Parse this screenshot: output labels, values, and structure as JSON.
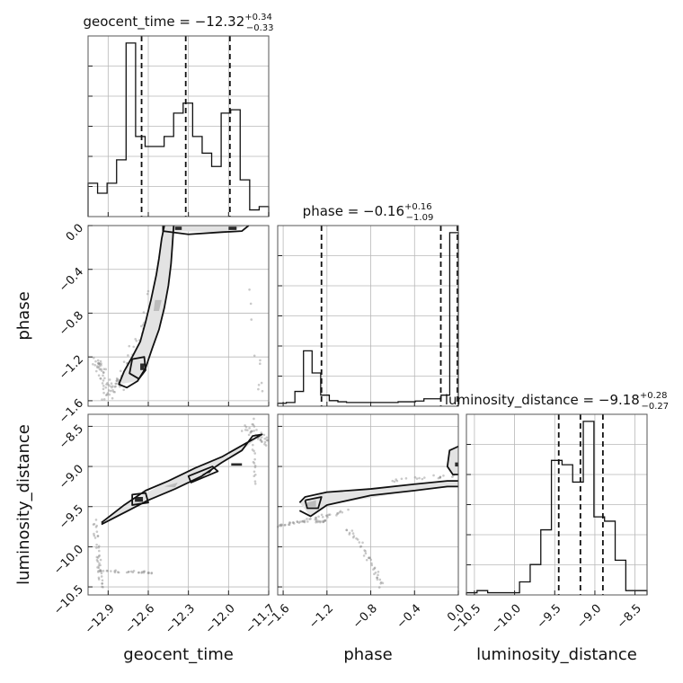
{
  "chart_data": {
    "type": "corner",
    "parameters": [
      {
        "name": "geocent_time",
        "xlabel": "geocent_time",
        "title": {
          "prefix": "geocent_time = ",
          "value": "−12.32",
          "plus": "+0.34",
          "minus": "−0.33"
        },
        "range": [
          -13.05,
          -11.7
        ],
        "ticks": [
          -12.9,
          -12.6,
          -12.3,
          -12.0,
          -11.7
        ],
        "tick_labels": [
          "−12.9",
          "−12.6",
          "−12.3",
          "−12.0",
          "−11.7"
        ],
        "quantiles": [
          -12.65,
          -12.32,
          -11.99
        ],
        "hist_counts": [
          1.0,
          0.7,
          1.0,
          1.7,
          5.2,
          2.4,
          2.1,
          2.1,
          2.4,
          3.1,
          3.4,
          2.4,
          1.9,
          1.5,
          3.1,
          3.2,
          1.1,
          0.2,
          0.3
        ]
      },
      {
        "name": "phase",
        "xlabel": "phase",
        "ylabel": "phase",
        "title": {
          "prefix": "phase = ",
          "value": "−0.16",
          "plus": "+0.16",
          "minus": "−1.09"
        },
        "range": [
          -1.65,
          0.0
        ],
        "ticks": [
          -1.6,
          -1.2,
          -0.8,
          -0.4,
          0.0
        ],
        "tick_labels": [
          "−1.6",
          "−1.2",
          "−0.8",
          "−0.4",
          "0.0"
        ],
        "quantiles": [
          -1.25,
          -0.16,
          0.0
        ],
        "hist_counts": [
          0.08,
          0.1,
          0.4,
          1.5,
          0.9,
          0.3,
          0.15,
          0.12,
          0.1,
          0.1,
          0.1,
          0.1,
          0.1,
          0.1,
          0.12,
          0.12,
          0.14,
          0.2,
          0.2,
          0.3,
          4.7
        ]
      },
      {
        "name": "luminosity_distance",
        "xlabel": "luminosity_distance",
        "ylabel": "luminosity_distance",
        "title": {
          "prefix": "luminosity_distance = ",
          "value": "−9.18",
          "plus": "+0.28",
          "minus": "−0.27"
        },
        "range": [
          -10.6,
          -8.35
        ],
        "ticks": [
          -10.5,
          -10.0,
          -9.5,
          -9.0,
          -8.5
        ],
        "tick_labels": [
          "−10.5",
          "−10.0",
          "−9.5",
          "−9.0",
          "−8.5"
        ],
        "quantiles": [
          -9.45,
          -9.18,
          -8.9
        ],
        "hist_counts": [
          0.05,
          0.1,
          0.05,
          0.05,
          0.05,
          0.3,
          0.7,
          1.5,
          3.1,
          3.0,
          2.6,
          4.0,
          1.8,
          1.7,
          0.8,
          0.1,
          0.1
        ]
      }
    ],
    "ylabels_shown": [
      "phase",
      "luminosity_distance"
    ],
    "grid": true
  }
}
